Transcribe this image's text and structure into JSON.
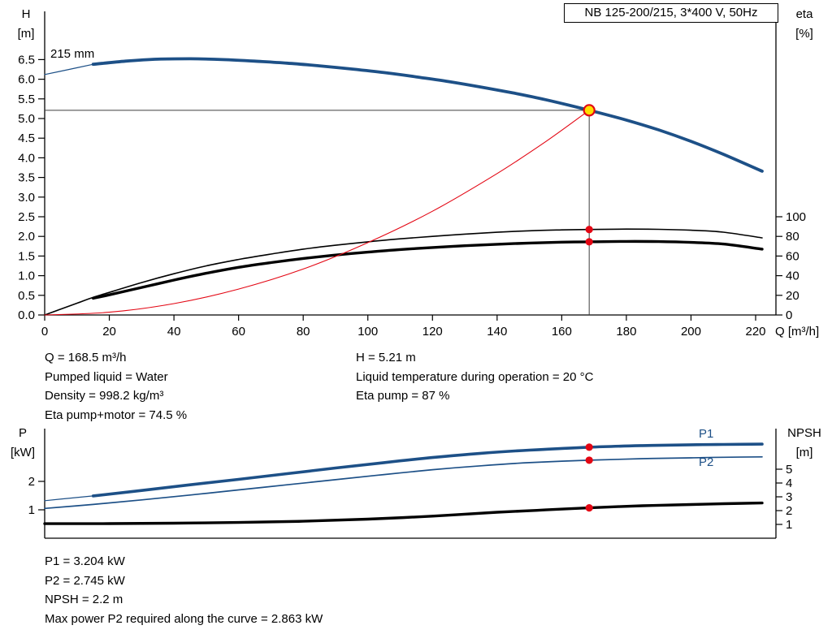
{
  "header": {
    "model_box": "NB 125-200/215, 3*400 V, 50Hz"
  },
  "axes_labels": {
    "h_line1": "H",
    "h_line2": "[m]",
    "eta_line1": "eta",
    "eta_line2": "[%]",
    "q": "Q [m³/h]",
    "p_line1": "P",
    "p_line2": "[kW]",
    "npsh_line1": "NPSH",
    "npsh_line2": "[m]"
  },
  "curve_labels": {
    "impeller": "215 mm",
    "p1": "P1",
    "p2": "P2"
  },
  "info_top": {
    "left": [
      "Q = 168.5 m³/h",
      "Pumped liquid = Water",
      "Density = 998.2 kg/m³",
      "Eta pump+motor = 74.5 %"
    ],
    "right": [
      "H = 5.21 m",
      "Liquid temperature during operation = 20 °C",
      "Eta pump = 87 %"
    ]
  },
  "info_bottom": [
    "P1 = 3.204 kW",
    "P2 = 2.745 kW",
    "NPSH = 2.2 m",
    "Max power P2 required along the curve = 2.863 kW"
  ],
  "colors": {
    "blue": "#1d5087",
    "black": "#000000",
    "red": "#e30613",
    "marker_fill": "#ffdd00",
    "crosshair": "#3c3c3c"
  },
  "chart_data": [
    {
      "type": "line",
      "title": "NB 125-200/215, 3*400 V, 50Hz",
      "x_axis": {
        "label": "Q [m³/h]",
        "min": 0,
        "max": 226,
        "ticks": [
          0,
          20,
          40,
          60,
          80,
          100,
          120,
          140,
          160,
          180,
          200,
          220
        ]
      },
      "y_axis_left": {
        "label": "H [m]",
        "min": 0,
        "max": 7.7,
        "ticks": [
          "0.0",
          "0.5",
          "1.0",
          "1.5",
          "2.0",
          "2.5",
          "3.0",
          "3.5",
          "4.0",
          "4.5",
          "5.0",
          "5.5",
          "6.0",
          "6.5"
        ]
      },
      "y_axis_right": {
        "label": "eta [%]",
        "min": 0,
        "max": 100,
        "ticks": [
          0,
          20,
          40,
          60,
          80,
          100
        ],
        "alignment": "eta 100 % aligns with H 2.5 m"
      },
      "crosshair": {
        "Q": 168.5,
        "H": 5.21
      },
      "series": [
        {
          "name": "head-leadin",
          "axis": "left",
          "color": "blue",
          "width": 1.2,
          "points": [
            [
              0,
              6.12
            ],
            [
              7,
              6.24
            ],
            [
              15,
              6.38
            ]
          ]
        },
        {
          "name": "head-215mm",
          "axis": "left",
          "color": "blue",
          "width": 3.8,
          "points": [
            [
              15,
              6.38
            ],
            [
              25,
              6.46
            ],
            [
              35,
              6.51
            ],
            [
              45,
              6.52
            ],
            [
              55,
              6.5
            ],
            [
              65,
              6.46
            ],
            [
              75,
              6.41
            ],
            [
              85,
              6.34
            ],
            [
              95,
              6.26
            ],
            [
              105,
              6.17
            ],
            [
              115,
              6.06
            ],
            [
              125,
              5.94
            ],
            [
              135,
              5.8
            ],
            [
              145,
              5.65
            ],
            [
              155,
              5.48
            ],
            [
              168.5,
              5.21
            ],
            [
              180,
              4.96
            ],
            [
              190,
              4.71
            ],
            [
              200,
              4.42
            ],
            [
              210,
              4.09
            ],
            [
              222,
              3.66
            ]
          ]
        },
        {
          "name": "eta-pump",
          "axis": "right",
          "color": "black",
          "width": 1.6,
          "points": [
            [
              0,
              0
            ],
            [
              5,
              6
            ],
            [
              10,
              12
            ],
            [
              15,
              18
            ],
            [
              20,
              23
            ],
            [
              30,
              33
            ],
            [
              40,
              42
            ],
            [
              50,
              50
            ],
            [
              60,
              56.5
            ],
            [
              70,
              62
            ],
            [
              80,
              67
            ],
            [
              90,
              71
            ],
            [
              100,
              74.5
            ],
            [
              110,
              77.5
            ],
            [
              120,
              80
            ],
            [
              130,
              82.3
            ],
            [
              140,
              84.2
            ],
            [
              150,
              85.7
            ],
            [
              160,
              86.6
            ],
            [
              168.5,
              87
            ],
            [
              180,
              87.4
            ],
            [
              190,
              87.2
            ],
            [
              200,
              86.3
            ],
            [
              210,
              84.3
            ],
            [
              222,
              78.5
            ]
          ]
        },
        {
          "name": "eta-pump-motor",
          "axis": "right",
          "color": "black",
          "width": 3.4,
          "points": [
            [
              15,
              17
            ],
            [
              20,
              20.5
            ],
            [
              30,
              28
            ],
            [
              40,
              35.5
            ],
            [
              50,
              42.5
            ],
            [
              60,
              48.5
            ],
            [
              70,
              53.3
            ],
            [
              80,
              57.5
            ],
            [
              90,
              61
            ],
            [
              100,
              64
            ],
            [
              110,
              66.6
            ],
            [
              120,
              68.7
            ],
            [
              130,
              70.5
            ],
            [
              140,
              72
            ],
            [
              150,
              73.2
            ],
            [
              160,
              74.1
            ],
            [
              168.5,
              74.5
            ],
            [
              180,
              74.9
            ],
            [
              190,
              74.7
            ],
            [
              200,
              73.9
            ],
            [
              210,
              72.2
            ],
            [
              222,
              67
            ]
          ]
        },
        {
          "name": "system-curve",
          "axis": "left",
          "color": "red",
          "width": 1.1,
          "points": [
            [
              0,
              0
            ],
            [
              20,
              0.07
            ],
            [
              40,
              0.29
            ],
            [
              60,
              0.66
            ],
            [
              80,
              1.17
            ],
            [
              100,
              1.84
            ],
            [
              120,
              2.64
            ],
            [
              140,
              3.6
            ],
            [
              155,
              4.41
            ],
            [
              168.5,
              5.21
            ]
          ]
        }
      ],
      "markers": [
        {
          "shape": "ring",
          "Q": 168.5,
          "value": 5.21,
          "axis": "left",
          "r": 6.5
        },
        {
          "shape": "dot",
          "Q": 168.5,
          "value": 87,
          "axis": "right",
          "r": 4.6
        },
        {
          "shape": "dot",
          "Q": 168.5,
          "value": 74.5,
          "axis": "right",
          "r": 4.6
        }
      ],
      "operating_point": {
        "Q_m3h": 168.5,
        "H_m": 5.21,
        "eta_pump_pct": 87,
        "eta_pump_motor_pct": 74.5
      }
    },
    {
      "type": "line",
      "x_axis": {
        "label": "Q [m³/h]",
        "min": 0,
        "max": 226,
        "ticks": []
      },
      "y_axis_left": {
        "label": "P [kW]",
        "min": 0,
        "max": 3.85,
        "ticks": [
          1,
          2
        ]
      },
      "y_axis_right": {
        "label": "NPSH [m]",
        "min": 0,
        "max": 7.9,
        "ticks": [
          1,
          2,
          3,
          4,
          5
        ]
      },
      "series": [
        {
          "name": "p1-leadin",
          "axis": "left",
          "color": "blue",
          "width": 1.2,
          "points": [
            [
              0,
              1.32
            ],
            [
              8,
              1.41
            ],
            [
              15,
              1.49
            ]
          ]
        },
        {
          "name": "p1",
          "axis": "left",
          "color": "blue",
          "width": 3.6,
          "points": [
            [
              15,
              1.49
            ],
            [
              30,
              1.68
            ],
            [
              45,
              1.88
            ],
            [
              60,
              2.07
            ],
            [
              75,
              2.27
            ],
            [
              90,
              2.47
            ],
            [
              105,
              2.66
            ],
            [
              120,
              2.84
            ],
            [
              135,
              2.99
            ],
            [
              150,
              3.1
            ],
            [
              168.5,
              3.204
            ],
            [
              185,
              3.26
            ],
            [
              200,
              3.29
            ],
            [
              210,
              3.3
            ],
            [
              222,
              3.31
            ]
          ]
        },
        {
          "name": "p2",
          "axis": "left",
          "color": "blue",
          "width": 1.7,
          "points": [
            [
              0,
              1.05
            ],
            [
              15,
              1.19
            ],
            [
              30,
              1.35
            ],
            [
              45,
              1.52
            ],
            [
              60,
              1.7
            ],
            [
              75,
              1.88
            ],
            [
              90,
              2.06
            ],
            [
              105,
              2.24
            ],
            [
              120,
              2.41
            ],
            [
              135,
              2.55
            ],
            [
              150,
              2.66
            ],
            [
              168.5,
              2.745
            ],
            [
              185,
              2.8
            ],
            [
              200,
              2.83
            ],
            [
              210,
              2.85
            ],
            [
              222,
              2.863
            ]
          ]
        },
        {
          "name": "npsh",
          "axis": "right",
          "color": "black",
          "width": 3.4,
          "points": [
            [
              0,
              1.05
            ],
            [
              20,
              1.06
            ],
            [
              40,
              1.09
            ],
            [
              60,
              1.14
            ],
            [
              80,
              1.23
            ],
            [
              100,
              1.38
            ],
            [
              120,
              1.6
            ],
            [
              140,
              1.88
            ],
            [
              155,
              2.05
            ],
            [
              168.5,
              2.2
            ],
            [
              185,
              2.35
            ],
            [
              200,
              2.44
            ],
            [
              210,
              2.5
            ],
            [
              222,
              2.55
            ]
          ]
        }
      ],
      "markers": [
        {
          "shape": "dot",
          "Q": 168.5,
          "value": 3.204,
          "axis": "left",
          "r": 4.6
        },
        {
          "shape": "dot",
          "Q": 168.5,
          "value": 2.745,
          "axis": "left",
          "r": 4.6
        },
        {
          "shape": "dot",
          "Q": 168.5,
          "value": 2.2,
          "axis": "right",
          "r": 4.6
        }
      ],
      "operating_point": {
        "P1_kW": 3.204,
        "P2_kW": 2.745,
        "NPSH_m": 2.2,
        "max_P2_along_curve_kW": 2.863
      }
    }
  ]
}
